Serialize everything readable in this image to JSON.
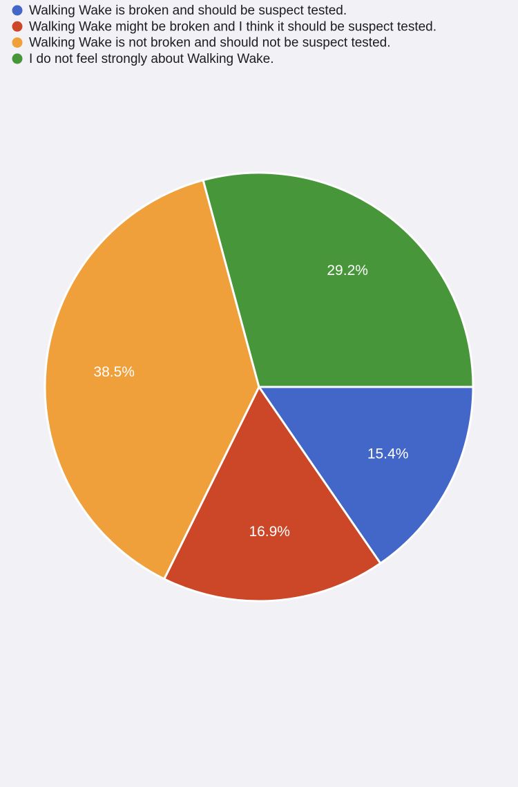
{
  "chart_data": {
    "type": "pie",
    "categories": [
      "Walking Wake is broken and should be suspect tested.",
      "Walking Wake might be broken and I think it should be suspect tested.",
      "Walking Wake is not broken and should not be suspect tested.",
      "I do not feel strongly about Walking Wake."
    ],
    "values": [
      15.4,
      16.9,
      38.5,
      29.2
    ],
    "value_labels": [
      "15.4%",
      "16.9%",
      "38.5%",
      "29.2%"
    ],
    "colors": [
      "#4267c8",
      "#cb4727",
      "#f0a03a",
      "#47963a"
    ],
    "legend": "top-left"
  }
}
